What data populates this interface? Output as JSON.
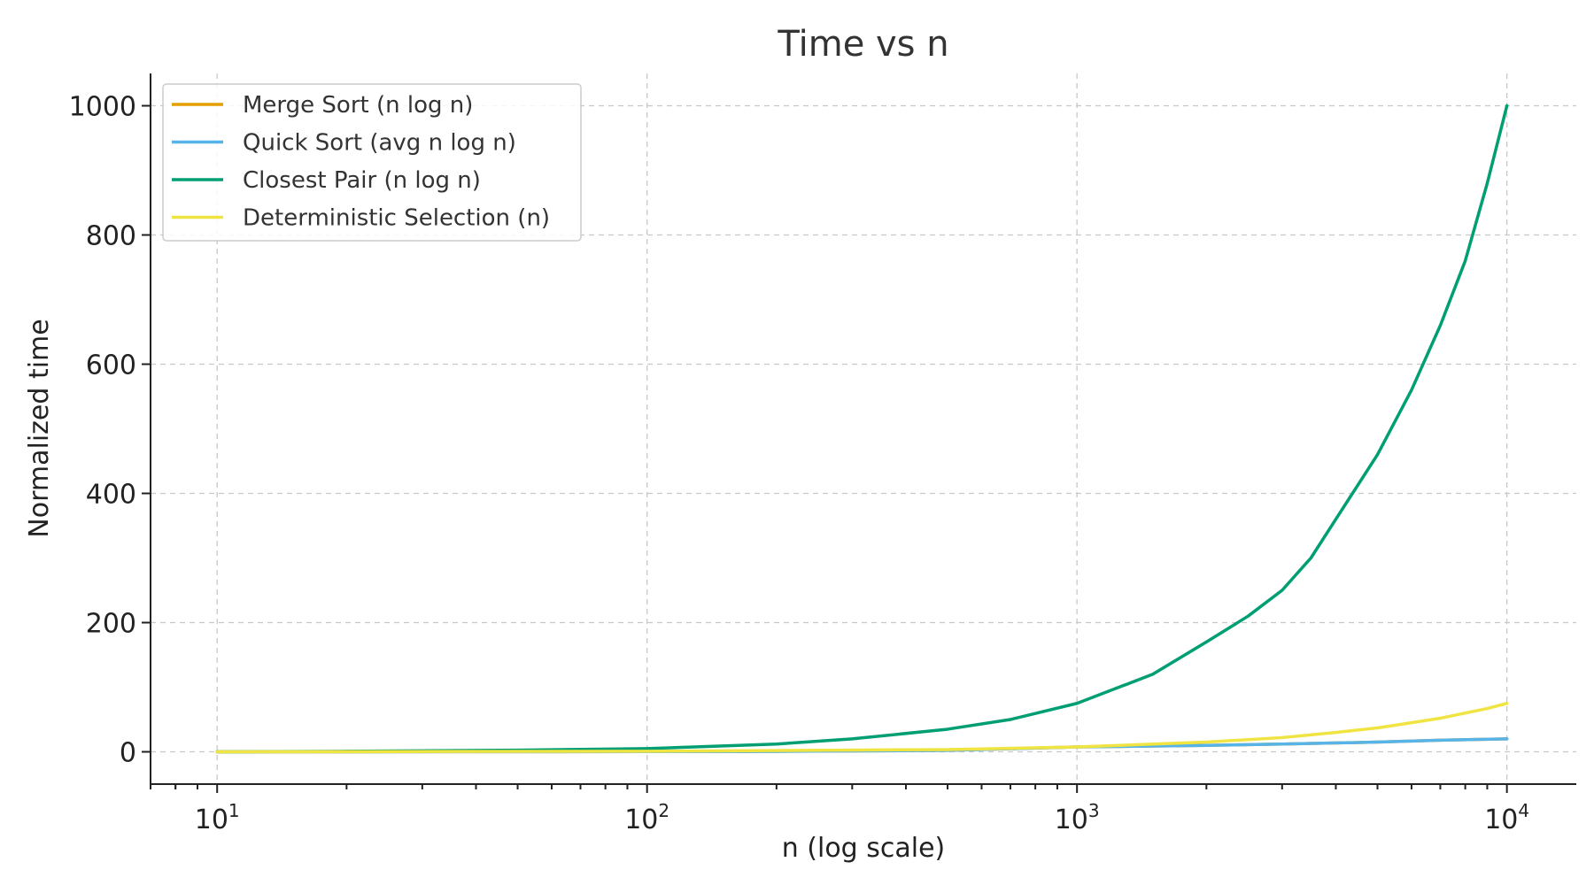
{
  "chart_data": {
    "type": "line",
    "title": "Time vs n",
    "xlabel": "n (log scale)",
    "ylabel": "Normalized time",
    "xscale": "log",
    "xlim": [
      7,
      14500
    ],
    "ylim": [
      -50,
      1050
    ],
    "x_ticks": [
      {
        "value": 10,
        "base": "10",
        "exp": "1"
      },
      {
        "value": 100,
        "base": "10",
        "exp": "2"
      },
      {
        "value": 1000,
        "base": "10",
        "exp": "3"
      },
      {
        "value": 10000,
        "base": "10",
        "exp": "4"
      }
    ],
    "y_ticks": [
      0,
      200,
      400,
      600,
      800,
      1000
    ],
    "grid": true,
    "legend_position": "top-left",
    "series": [
      {
        "name": "Merge Sort (n log n)",
        "color": "#E69F00",
        "x": [
          10,
          20,
          50,
          100,
          200,
          500,
          1000,
          2000,
          3000,
          5000,
          7000,
          10000
        ],
        "y": [
          0.01,
          0.04,
          0.15,
          0.3,
          0.7,
          2.2,
          7.5,
          10,
          12,
          15,
          18,
          20
        ]
      },
      {
        "name": "Quick Sort (avg n log n)",
        "color": "#56B4E9",
        "x": [
          10,
          20,
          50,
          100,
          200,
          500,
          1000,
          2000,
          3000,
          5000,
          7000,
          10000
        ],
        "y": [
          0.01,
          0.04,
          0.15,
          0.3,
          0.7,
          2.2,
          7.5,
          10,
          12,
          15,
          18,
          20
        ]
      },
      {
        "name": "Closest Pair (n log n)",
        "color": "#009E73",
        "x": [
          10,
          20,
          50,
          100,
          150,
          200,
          300,
          500,
          700,
          1000,
          1500,
          2000,
          2500,
          3000,
          3500,
          4000,
          5000,
          6000,
          7000,
          8000,
          9000,
          10000
        ],
        "y": [
          0.01,
          0.8,
          2.5,
          5,
          9,
          12,
          20,
          35,
          50,
          75,
          120,
          170,
          210,
          250,
          300,
          360,
          460,
          560,
          660,
          760,
          880,
          1000
        ]
      },
      {
        "name": "Deterministic Selection (n)",
        "color": "#F0E442",
        "x": [
          10,
          100,
          500,
          1000,
          2000,
          3000,
          4000,
          5000,
          6000,
          7000,
          8000,
          9000,
          10000
        ],
        "y": [
          0,
          0.8,
          3.5,
          7.5,
          15,
          22,
          30,
          37,
          45,
          52,
          60,
          67,
          75
        ]
      }
    ]
  }
}
